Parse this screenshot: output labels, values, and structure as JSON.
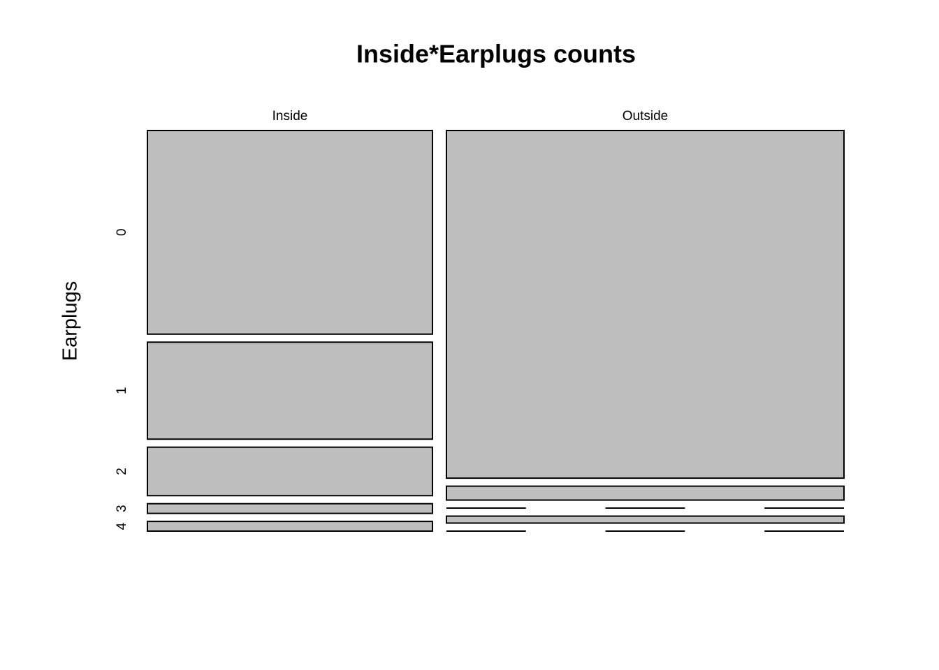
{
  "chart_data": {
    "type": "mosaic",
    "title": "Inside*Earplugs counts",
    "y_label": "Earplugs",
    "categories": [
      "Inside",
      "Outside"
    ],
    "series": [
      {
        "name": "0",
        "values": [
          21,
          50
        ]
      },
      {
        "name": "1",
        "values": [
          10,
          2
        ]
      },
      {
        "name": "2",
        "values": [
          5,
          0
        ]
      },
      {
        "name": "3",
        "values": [
          1,
          1
        ]
      },
      {
        "name": "4",
        "values": [
          1,
          0
        ]
      }
    ],
    "color": "#bebebe"
  }
}
